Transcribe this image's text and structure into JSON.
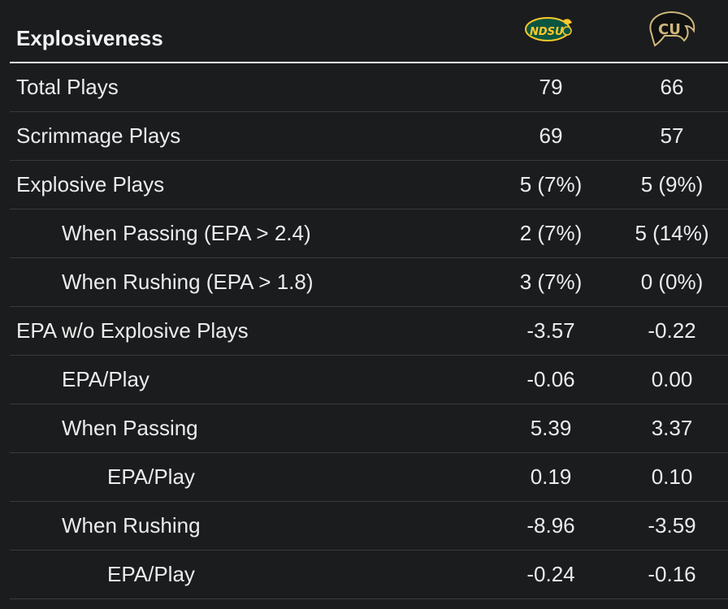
{
  "header": {
    "title": "Explosiveness",
    "teams": [
      {
        "name": "NDSU",
        "icon": "ndsu-bison-logo-icon",
        "colors": {
          "green": "#0a5640",
          "yellow": "#ffc82e"
        }
      },
      {
        "name": "CU",
        "icon": "colorado-buffaloes-logo-icon",
        "colors": {
          "gold": "#cfb87c",
          "black": "#000000"
        }
      }
    ]
  },
  "rows": [
    {
      "label": "Total Plays",
      "indent": 0,
      "a": "79",
      "b": "66"
    },
    {
      "label": "Scrimmage Plays",
      "indent": 0,
      "a": "69",
      "b": "57"
    },
    {
      "label": "Explosive Plays",
      "indent": 0,
      "a": "5 (7%)",
      "b": "5 (9%)"
    },
    {
      "label": "When Passing (EPA > 2.4)",
      "indent": 1,
      "a": "2 (7%)",
      "b": "5 (14%)"
    },
    {
      "label": "When Rushing (EPA > 1.8)",
      "indent": 1,
      "a": "3 (7%)",
      "b": "0 (0%)"
    },
    {
      "label": "EPA w/o Explosive Plays",
      "indent": 0,
      "a": "-3.57",
      "b": "-0.22"
    },
    {
      "label": "EPA/Play",
      "indent": 1,
      "a": "-0.06",
      "b": "0.00"
    },
    {
      "label": "When Passing",
      "indent": 1,
      "a": "5.39",
      "b": "3.37"
    },
    {
      "label": "EPA/Play",
      "indent": 2,
      "a": "0.19",
      "b": "0.10"
    },
    {
      "label": "When Rushing",
      "indent": 1,
      "a": "-8.96",
      "b": "-3.59"
    },
    {
      "label": "EPA/Play",
      "indent": 2,
      "a": "-0.24",
      "b": "-0.16"
    }
  ]
}
